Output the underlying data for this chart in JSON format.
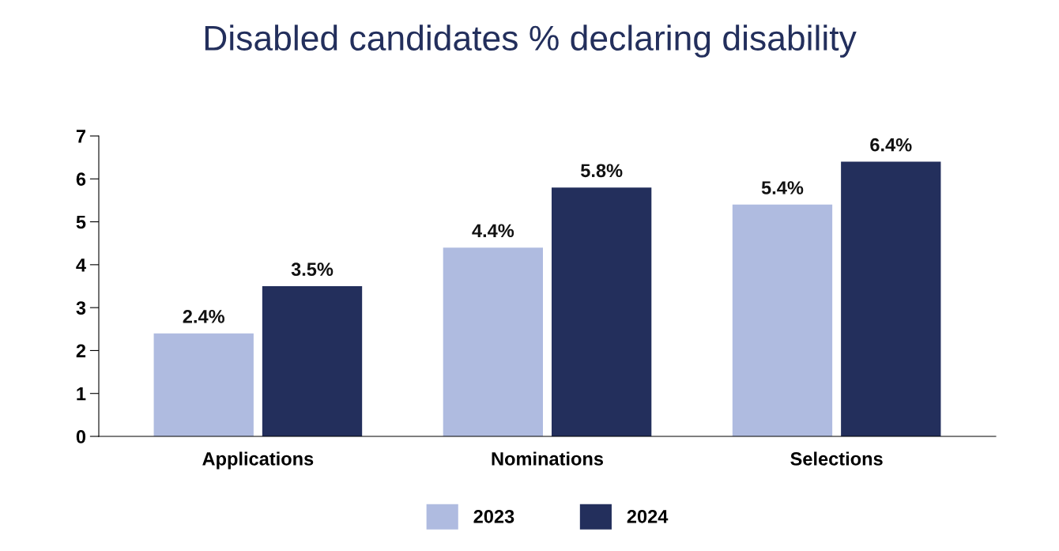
{
  "chart_data": {
    "type": "bar",
    "title": "Disabled candidates % declaring disability",
    "categories": [
      "Applications",
      "Nominations",
      "Selections"
    ],
    "series": [
      {
        "name": "2023",
        "color": "#afbbe0",
        "values": [
          2.4,
          4.4,
          5.4
        ],
        "value_labels": [
          "2.4%",
          "4.4%",
          "5.4%"
        ]
      },
      {
        "name": "2024",
        "color": "#232f5c",
        "values": [
          3.5,
          5.8,
          6.4
        ],
        "value_labels": [
          "3.5%",
          "5.8%",
          "6.4%"
        ]
      }
    ],
    "ylim": [
      0,
      7
    ],
    "yticks": [
      0,
      1,
      2,
      3,
      4,
      5,
      6,
      7
    ],
    "grid": false,
    "legend": "bottom"
  }
}
